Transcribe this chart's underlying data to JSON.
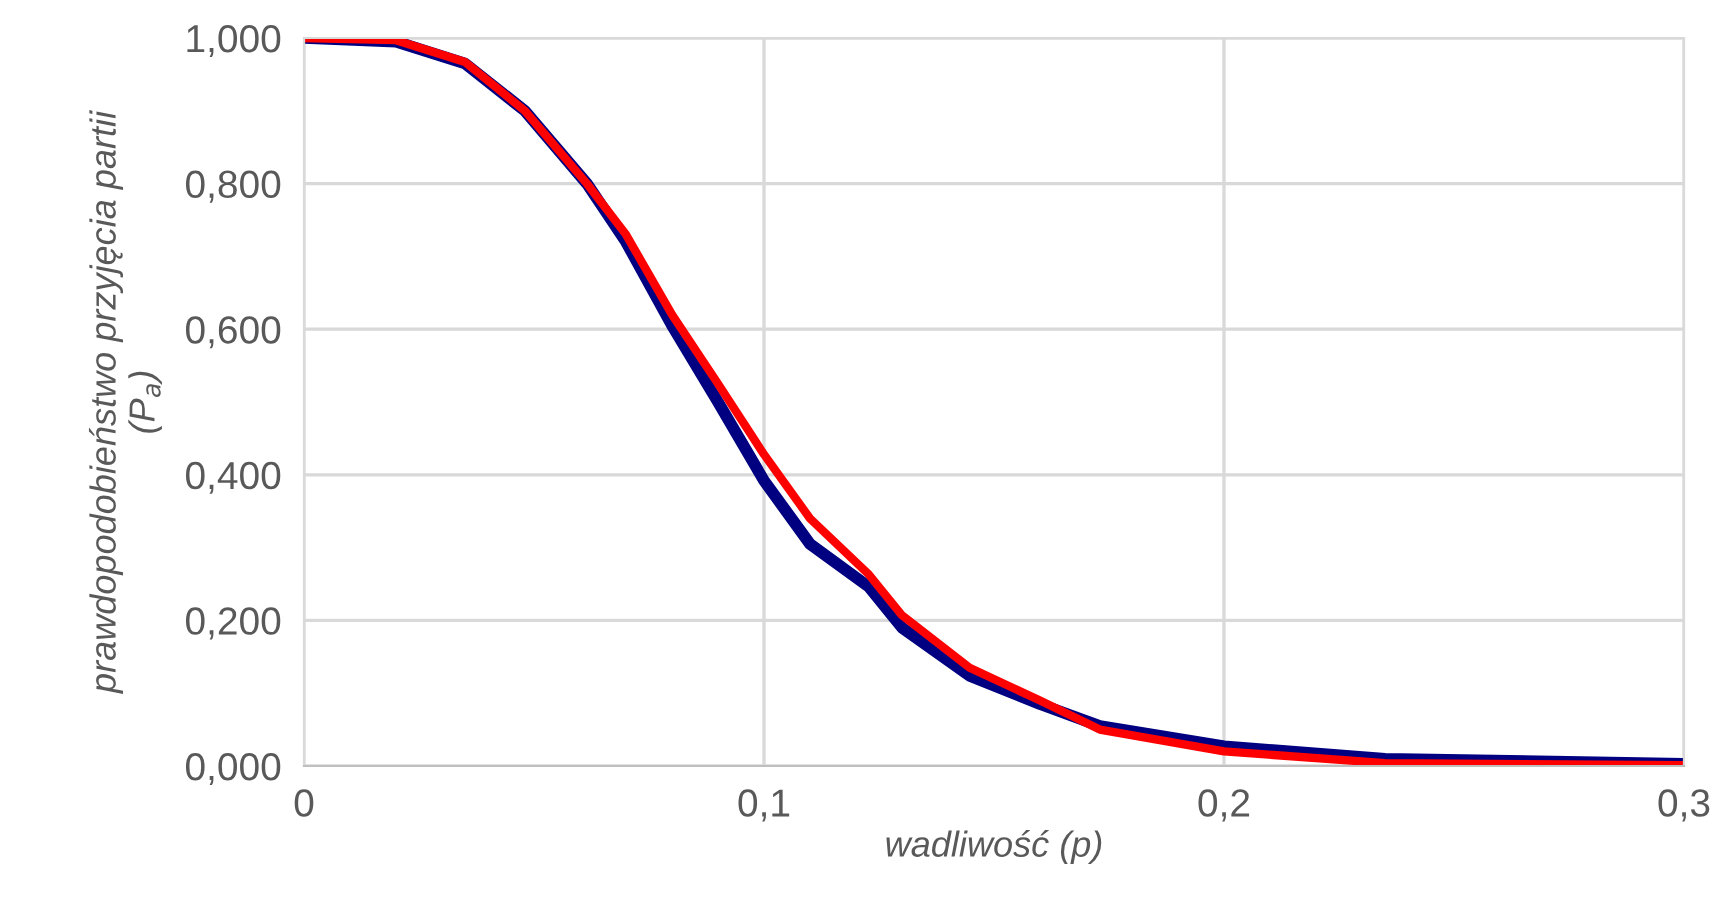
{
  "chart_data": {
    "type": "line",
    "xlabel": "wadliwość (p)",
    "ylabel": "prawdopodobieństwo przyjęcia partii\n(P$_{a}$)",
    "x": [
      0,
      0.02,
      0.035,
      0.048,
      0.0615,
      0.07,
      0.08,
      0.09,
      0.1,
      0.11,
      0.1228,
      0.13,
      0.1447,
      0.16,
      0.173,
      0.2,
      0.235,
      0.3
    ],
    "series": [
      {
        "color": "#000080",
        "values": [
          1,
          0.995,
          0.965,
          0.9,
          0.8,
          0.72,
          0.605,
          0.5,
          0.392,
          0.305,
          0.246,
          0.19,
          0.124,
          0.085,
          0.055,
          0.027,
          0.01,
          0.003
        ]
      },
      {
        "color": "#ff0000",
        "values": [
          1,
          0.997,
          0.967,
          0.9,
          0.8,
          0.73,
          0.62,
          0.525,
          0.428,
          0.34,
          0.263,
          0.207,
          0.135,
          0.09,
          0.05,
          0.02,
          0.004,
          0.001
        ]
      }
    ],
    "xlim": [
      0,
      0.3
    ],
    "ylim": [
      0,
      1
    ],
    "xticks": [
      0,
      {
        "value": 0.1,
        "label": "0,1"
      },
      {
        "value": 0.2,
        "label": "0,2"
      },
      {
        "value": 0.3,
        "label": "0,3"
      }
    ],
    "yticks": [
      {
        "value": 0,
        "label": "0,000"
      },
      {
        "value": 0.2,
        "label": "0,200"
      },
      {
        "value": 0.4,
        "label": "0,400"
      },
      {
        "value": 0.6,
        "label": "0,600"
      },
      {
        "value": 0.8,
        "label": "0,800"
      },
      {
        "value": 1,
        "label": "1,000"
      }
    ],
    "grid": true,
    "marker": "none",
    "line_style": "solid"
  }
}
